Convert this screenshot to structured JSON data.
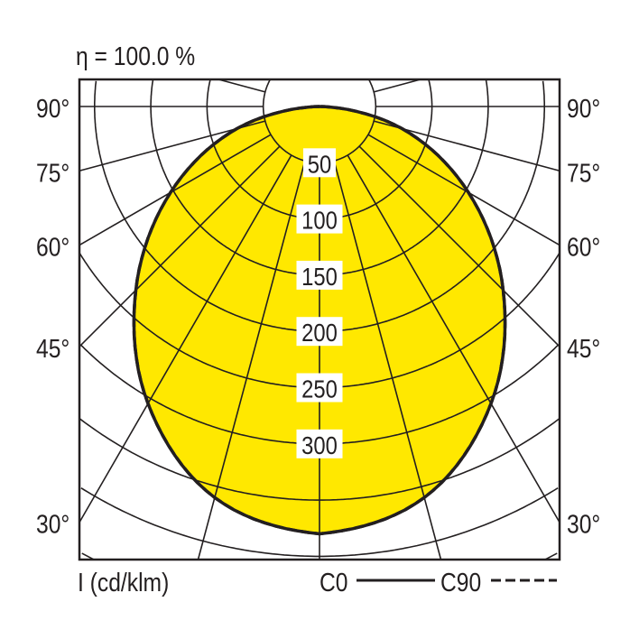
{
  "chart_data": {
    "type": "polar",
    "title": "η = 100.0 %",
    "unit_label": "I (cd/klm)",
    "angle_labels": [
      "90°",
      "75°",
      "60°",
      "45°",
      "30°"
    ],
    "angle_label_values": [
      90,
      75,
      60,
      45,
      30
    ],
    "radial_tick_values": [
      50,
      100,
      150,
      200,
      250,
      300
    ],
    "radial_tick_labels": [
      "50",
      "100",
      "150",
      "200",
      "250",
      "300"
    ],
    "angle_step": 15,
    "series": [
      {
        "name": "C0",
        "style": "solid",
        "angles": [
          0,
          15,
          30,
          45,
          60,
          75,
          90
        ],
        "values": [
          380,
          360,
          305,
          231,
          153,
          76,
          0
        ]
      },
      {
        "name": "C90",
        "style": "dashed",
        "angles": [
          0,
          15,
          30,
          45,
          60,
          75,
          90
        ],
        "values": [
          380,
          360,
          305,
          231,
          153,
          76,
          0
        ]
      }
    ],
    "legend": {
      "placement": "bottom-right",
      "entries": [
        "C0",
        "C90"
      ]
    },
    "colors": {
      "fill": "#ffe800",
      "line": "#231f20",
      "grid": "#231f20"
    }
  }
}
